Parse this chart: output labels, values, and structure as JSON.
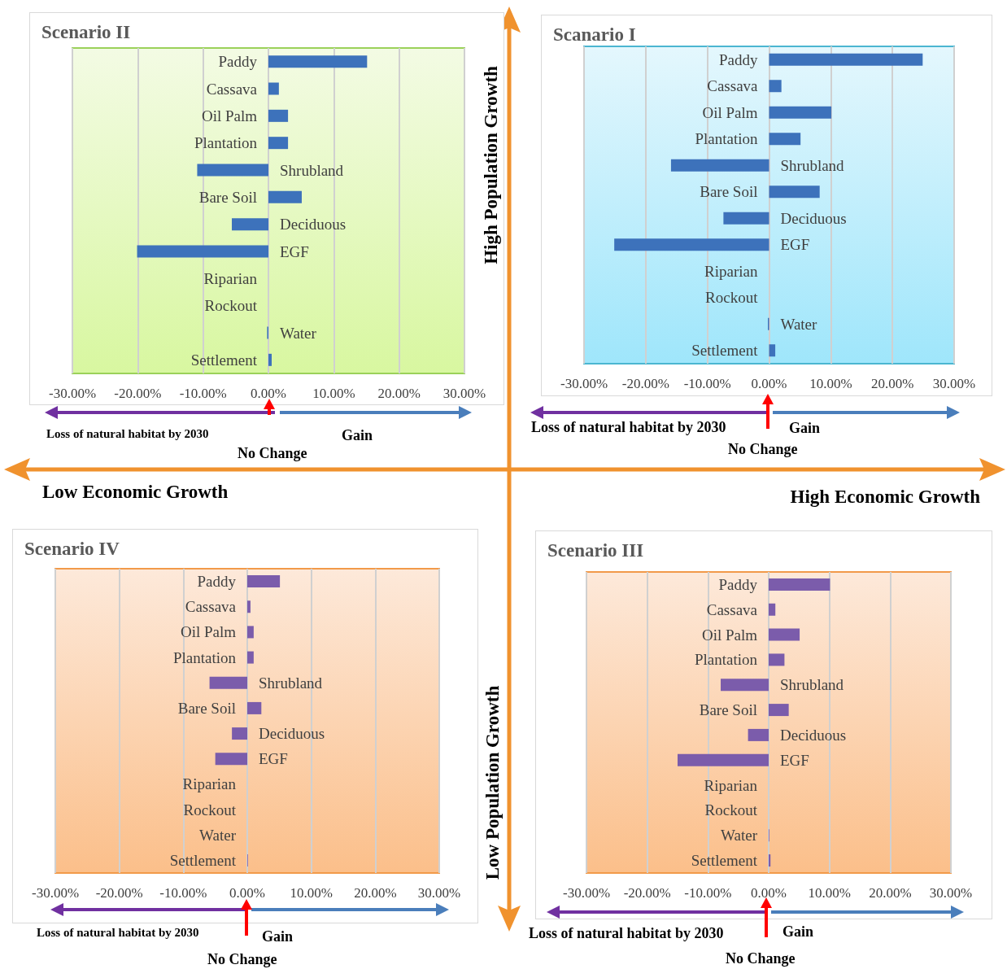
{
  "chart_data": [
    {
      "type": "bar",
      "orientation": "horizontal",
      "title": "Scenario II",
      "categories": [
        "Paddy",
        "Cassava",
        "Oil Palm",
        "Plantation",
        "Shrubland",
        "Bare Soil",
        "Deciduous",
        "EGF",
        "Riparian",
        "Rockout",
        "Water",
        "Settlement"
      ],
      "series": [
        {
          "color": "#3d72bb",
          "values": [
            15.1,
            1.6,
            3.0,
            3.0,
            -10.9,
            5.1,
            -5.6,
            -20.1,
            0,
            0,
            -0.2,
            0.5
          ]
        }
      ],
      "xlim": [
        -30,
        30
      ],
      "xticks": [
        {
          "value": -30,
          "label": "-30.00%"
        },
        {
          "value": -20,
          "label": "-20.00%"
        },
        {
          "value": -10,
          "label": "-10.00%"
        },
        {
          "value": 0,
          "label": "0.00%"
        },
        {
          "value": 10,
          "label": "10.00%"
        },
        {
          "value": 20,
          "label": "20.00%"
        },
        {
          "value": 30,
          "label": "30.00%"
        }
      ],
      "grid": "x",
      "annotations": [
        "Loss of natural habitat by 2030",
        "Gain",
        "No Change",
        "High Population Growth",
        "Low Economic Growth"
      ]
    },
    {
      "type": "bar",
      "orientation": "horizontal",
      "title": "Scanario I",
      "categories": [
        "Paddy",
        "Cassava",
        "Oil Palm",
        "Plantation",
        "Shrubland",
        "Bare Soil",
        "Deciduous",
        "EGF",
        "Riparian",
        "Rockout",
        "Water",
        "Settlement"
      ],
      "series": [
        {
          "color": "#3d72bb",
          "values": [
            24.9,
            2.0,
            10.1,
            5.1,
            -15.9,
            8.2,
            -7.4,
            -25.1,
            0,
            0,
            -0.2,
            1.0
          ]
        }
      ],
      "xlim": [
        -30,
        30
      ],
      "xticks": [
        {
          "value": -30,
          "label": "-30.00%"
        },
        {
          "value": -20,
          "label": "-20.00%"
        },
        {
          "value": -10,
          "label": "-10.00%"
        },
        {
          "value": 0,
          "label": "0.00%"
        },
        {
          "value": 10,
          "label": "10.00%"
        },
        {
          "value": 20,
          "label": "20.00%"
        },
        {
          "value": 30,
          "label": "30.00%"
        }
      ],
      "grid": "x",
      "annotations": [
        "Loss of natural habitat by 2030",
        "Gain",
        "No Change",
        "High Economic Growth"
      ]
    },
    {
      "type": "bar",
      "orientation": "horizontal",
      "title": "Scenario IV",
      "categories": [
        "Paddy",
        "Cassava",
        "Oil Palm",
        "Plantation",
        "Shrubland",
        "Bare Soil",
        "Deciduous",
        "EGF",
        "Riparian",
        "Rockout",
        "Water",
        "Settlement"
      ],
      "series": [
        {
          "color": "#7b5cab",
          "values": [
            5.1,
            0.5,
            1.0,
            1.0,
            -5.9,
            2.2,
            -2.4,
            -5.0,
            0,
            0,
            0,
            0.1
          ]
        }
      ],
      "xlim": [
        -30,
        30
      ],
      "xticks": [
        {
          "value": -30,
          "label": "-30.00%"
        },
        {
          "value": -20,
          "label": "-20.00%"
        },
        {
          "value": -10,
          "label": "-10.00%"
        },
        {
          "value": 0,
          "label": "0.00%"
        },
        {
          "value": 10,
          "label": "10.00%"
        },
        {
          "value": 20,
          "label": "20.00%"
        },
        {
          "value": 30,
          "label": "30.00%"
        }
      ],
      "grid": "x",
      "annotations": [
        "Loss of natural habitat by 2030",
        "Gain",
        "No Change"
      ]
    },
    {
      "type": "bar",
      "orientation": "horizontal",
      "title": "Scenario III",
      "categories": [
        "Paddy",
        "Cassava",
        "Oil Palm",
        "Plantation",
        "Shrubland",
        "Bare Soil",
        "Deciduous",
        "EGF",
        "Riparian",
        "Rockout",
        "Water",
        "Settlement"
      ],
      "series": [
        {
          "color": "#7b5cab",
          "values": [
            10.1,
            1.1,
            5.1,
            2.6,
            -7.9,
            3.3,
            -3.4,
            -15.0,
            0,
            0,
            0.1,
            0.3
          ]
        }
      ],
      "xlim": [
        -30,
        30
      ],
      "xticks": [
        {
          "value": -30,
          "label": "-30.00%"
        },
        {
          "value": -20,
          "label": "-20.00%"
        },
        {
          "value": -10,
          "label": "-10.00%"
        },
        {
          "value": 0,
          "label": "0.00%"
        },
        {
          "value": 10,
          "label": "10.00%"
        },
        {
          "value": 20,
          "label": "20.00%"
        },
        {
          "value": 30,
          "label": "30.00%"
        }
      ],
      "grid": "x",
      "annotations": [
        "Loss of natural habitat by 2030",
        "Gain",
        "No Change",
        "Low Population Growth"
      ]
    }
  ]
}
